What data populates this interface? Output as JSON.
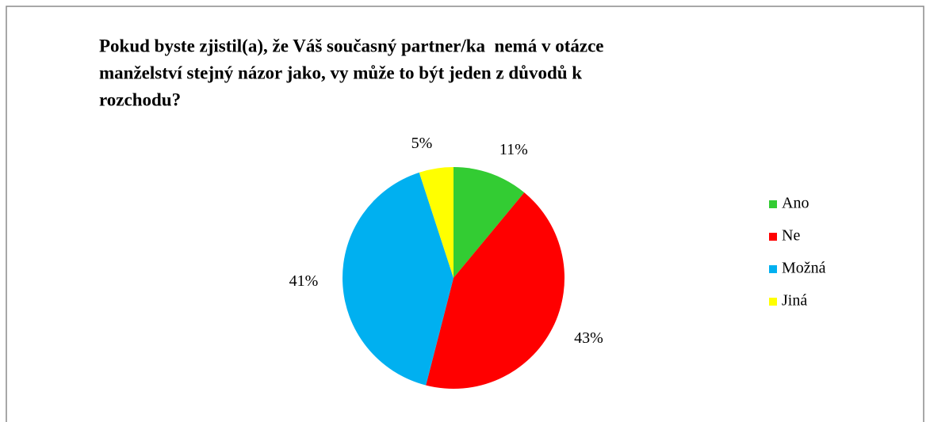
{
  "chart_data": {
    "type": "pie",
    "title": [
      "Pokud byste zjistil(a), že Váš současný partner/ka  nemá v otázce",
      "manželství stejný názor jako, vy může to být jeden z důvodů k",
      "rozchodu?"
    ],
    "categories": [
      "Ano",
      "Ne",
      "Možná",
      "Jiná"
    ],
    "values": [
      11,
      43,
      41,
      5
    ],
    "value_labels": [
      "11%",
      "43%",
      "41%",
      "5%"
    ],
    "colors": [
      "#33cc33",
      "#ff0000",
      "#00b0f0",
      "#ffff00"
    ],
    "legend": "right"
  }
}
